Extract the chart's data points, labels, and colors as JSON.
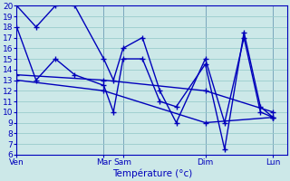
{
  "background_color": "#cce8e8",
  "grid_color": "#99cccc",
  "line_color": "#0000bb",
  "sep_color": "#5577aa",
  "ylim": [
    6,
    20
  ],
  "yticks": [
    6,
    7,
    8,
    9,
    10,
    11,
    12,
    13,
    14,
    15,
    16,
    17,
    18,
    19,
    20
  ],
  "xlim": [
    0,
    280
  ],
  "xlabel": "Température (°c)",
  "xtick_positions": [
    0,
    90,
    110,
    195,
    265
  ],
  "xtick_labels": [
    "Ven",
    "Mar",
    "Sam",
    "Dim",
    "Lun"
  ],
  "day_sep_x": [
    0,
    90,
    110,
    195,
    265
  ],
  "series": [
    {
      "x": [
        0,
        20,
        40,
        60,
        90,
        100,
        110,
        130,
        148,
        165,
        195,
        215,
        235,
        252,
        265
      ],
      "y": [
        20,
        18,
        20,
        20,
        15,
        13,
        16,
        17,
        12,
        9,
        15,
        9,
        17,
        10,
        9.5
      ]
    },
    {
      "x": [
        0,
        20,
        40,
        60,
        90,
        100,
        110,
        130,
        148,
        165,
        195,
        215,
        235,
        252,
        265
      ],
      "y": [
        18,
        13,
        15,
        13.5,
        12.5,
        10,
        15,
        15,
        11,
        10.5,
        14.5,
        6.5,
        17.5,
        10.5,
        9.5
      ]
    },
    {
      "x": [
        0,
        90,
        195,
        265
      ],
      "y": [
        13.5,
        13,
        12,
        10
      ]
    },
    {
      "x": [
        0,
        90,
        195,
        265
      ],
      "y": [
        13,
        12,
        9,
        9.5
      ]
    }
  ]
}
